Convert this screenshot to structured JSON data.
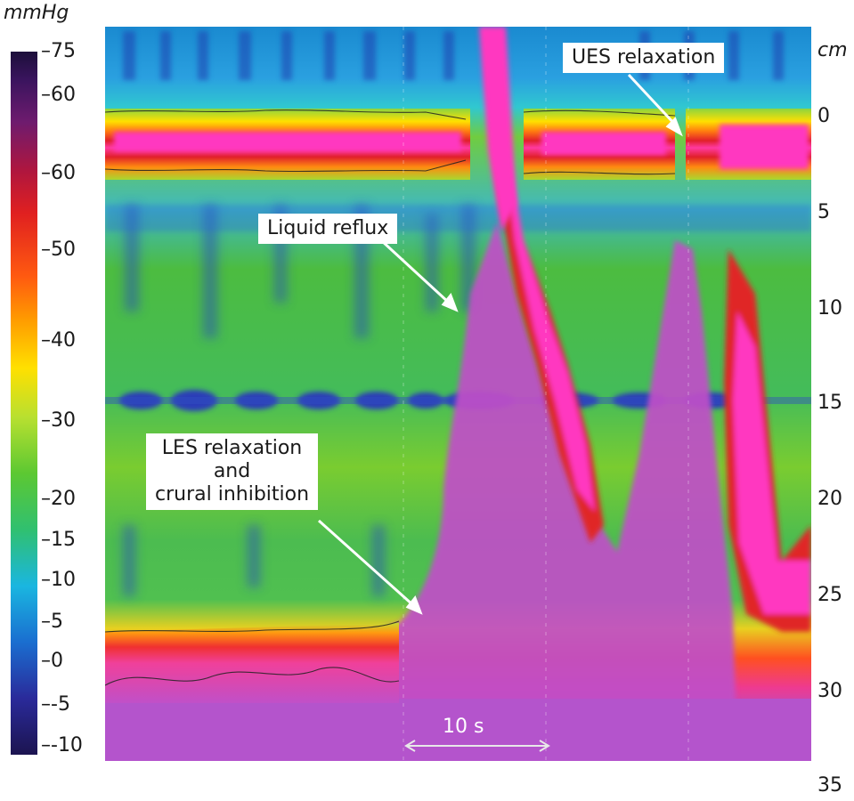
{
  "chart_data": {
    "type": "heatmap",
    "title": "",
    "colorbar": {
      "unit": "mmHg",
      "labels": [
        "75",
        "60",
        "60",
        "50",
        "40",
        "30",
        "20",
        "15",
        "10",
        "5",
        "0",
        "-5",
        "-10"
      ]
    },
    "y_axis": {
      "unit": "cm",
      "ticks": [
        "0",
        "5",
        "10",
        "15",
        "20",
        "25",
        "30",
        "35"
      ]
    },
    "annotations": [
      {
        "id": "ues",
        "text": "UES relaxation"
      },
      {
        "id": "reflux",
        "text": "Liquid reflux"
      },
      {
        "id": "les",
        "lines": [
          "LES relaxation",
          "and",
          "crural inhibition"
        ]
      }
    ],
    "scale_bar": "10 s"
  }
}
